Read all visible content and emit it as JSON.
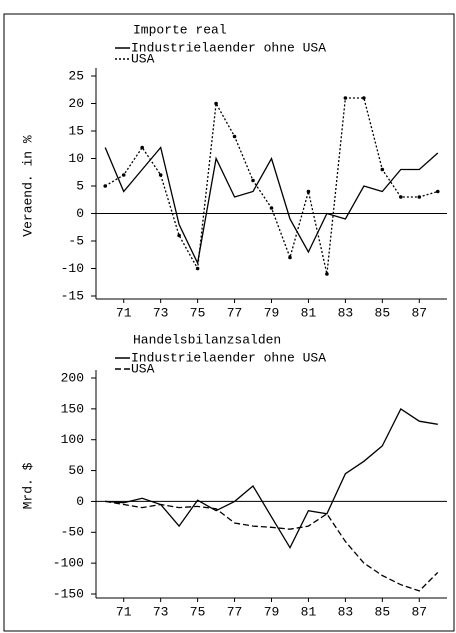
{
  "chart_data": [
    {
      "type": "line",
      "title": "Importe real",
      "ylabel": "Veraend. in %",
      "x": [
        70,
        71,
        72,
        73,
        74,
        75,
        76,
        77,
        78,
        79,
        80,
        81,
        82,
        83,
        84,
        85,
        86,
        87,
        88
      ],
      "xlim": [
        69.5,
        88.5
      ],
      "xticks": [
        71,
        73,
        75,
        77,
        79,
        81,
        83,
        85,
        87
      ],
      "ylim": [
        -15,
        25
      ],
      "yticks": [
        25,
        20,
        15,
        10,
        5,
        0,
        -5,
        -10,
        -15
      ],
      "series": [
        {
          "name": "Industrielaender ohne USA",
          "color": "#000000",
          "linestyle": "solid",
          "marker": false,
          "values": [
            12,
            4,
            8,
            12,
            -2,
            -9,
            10,
            3,
            4,
            10,
            -1,
            -7,
            0,
            -1,
            5,
            4,
            8,
            8,
            11
          ]
        },
        {
          "name": "USA",
          "color": "#000000",
          "linestyle": "dotted",
          "marker": true,
          "values": [
            5,
            7,
            12,
            7,
            -4,
            -10,
            20,
            14,
            6,
            1,
            -8,
            4,
            -11,
            21,
            21,
            8,
            3,
            3,
            4
          ]
        }
      ]
    },
    {
      "type": "line",
      "title": "Handelsbilanzsalden",
      "ylabel": "Mrd. $",
      "x": [
        70,
        71,
        72,
        73,
        74,
        75,
        76,
        77,
        78,
        79,
        80,
        81,
        82,
        83,
        84,
        85,
        86,
        87,
        88
      ],
      "xlim": [
        69.5,
        88.5
      ],
      "xticks": [
        71,
        73,
        75,
        77,
        79,
        81,
        83,
        85,
        87
      ],
      "ylim": [
        -150,
        200
      ],
      "yticks": [
        200,
        150,
        100,
        50,
        0,
        -50,
        -100,
        -150
      ],
      "series": [
        {
          "name": "Industrielaender ohne USA",
          "color": "#000000",
          "linestyle": "solid",
          "marker": false,
          "values": [
            0,
            -2,
            5,
            -5,
            -40,
            2,
            -15,
            0,
            25,
            -25,
            -75,
            -15,
            -20,
            45,
            65,
            90,
            150,
            130,
            125
          ]
        },
        {
          "name": "USA",
          "color": "#000000",
          "linestyle": "dashed",
          "marker": false,
          "values": [
            0,
            -5,
            -10,
            -5,
            -10,
            -8,
            -12,
            -35,
            -40,
            -42,
            -45,
            -40,
            -20,
            -65,
            -100,
            -120,
            -135,
            -145,
            -115
          ]
        }
      ]
    }
  ]
}
